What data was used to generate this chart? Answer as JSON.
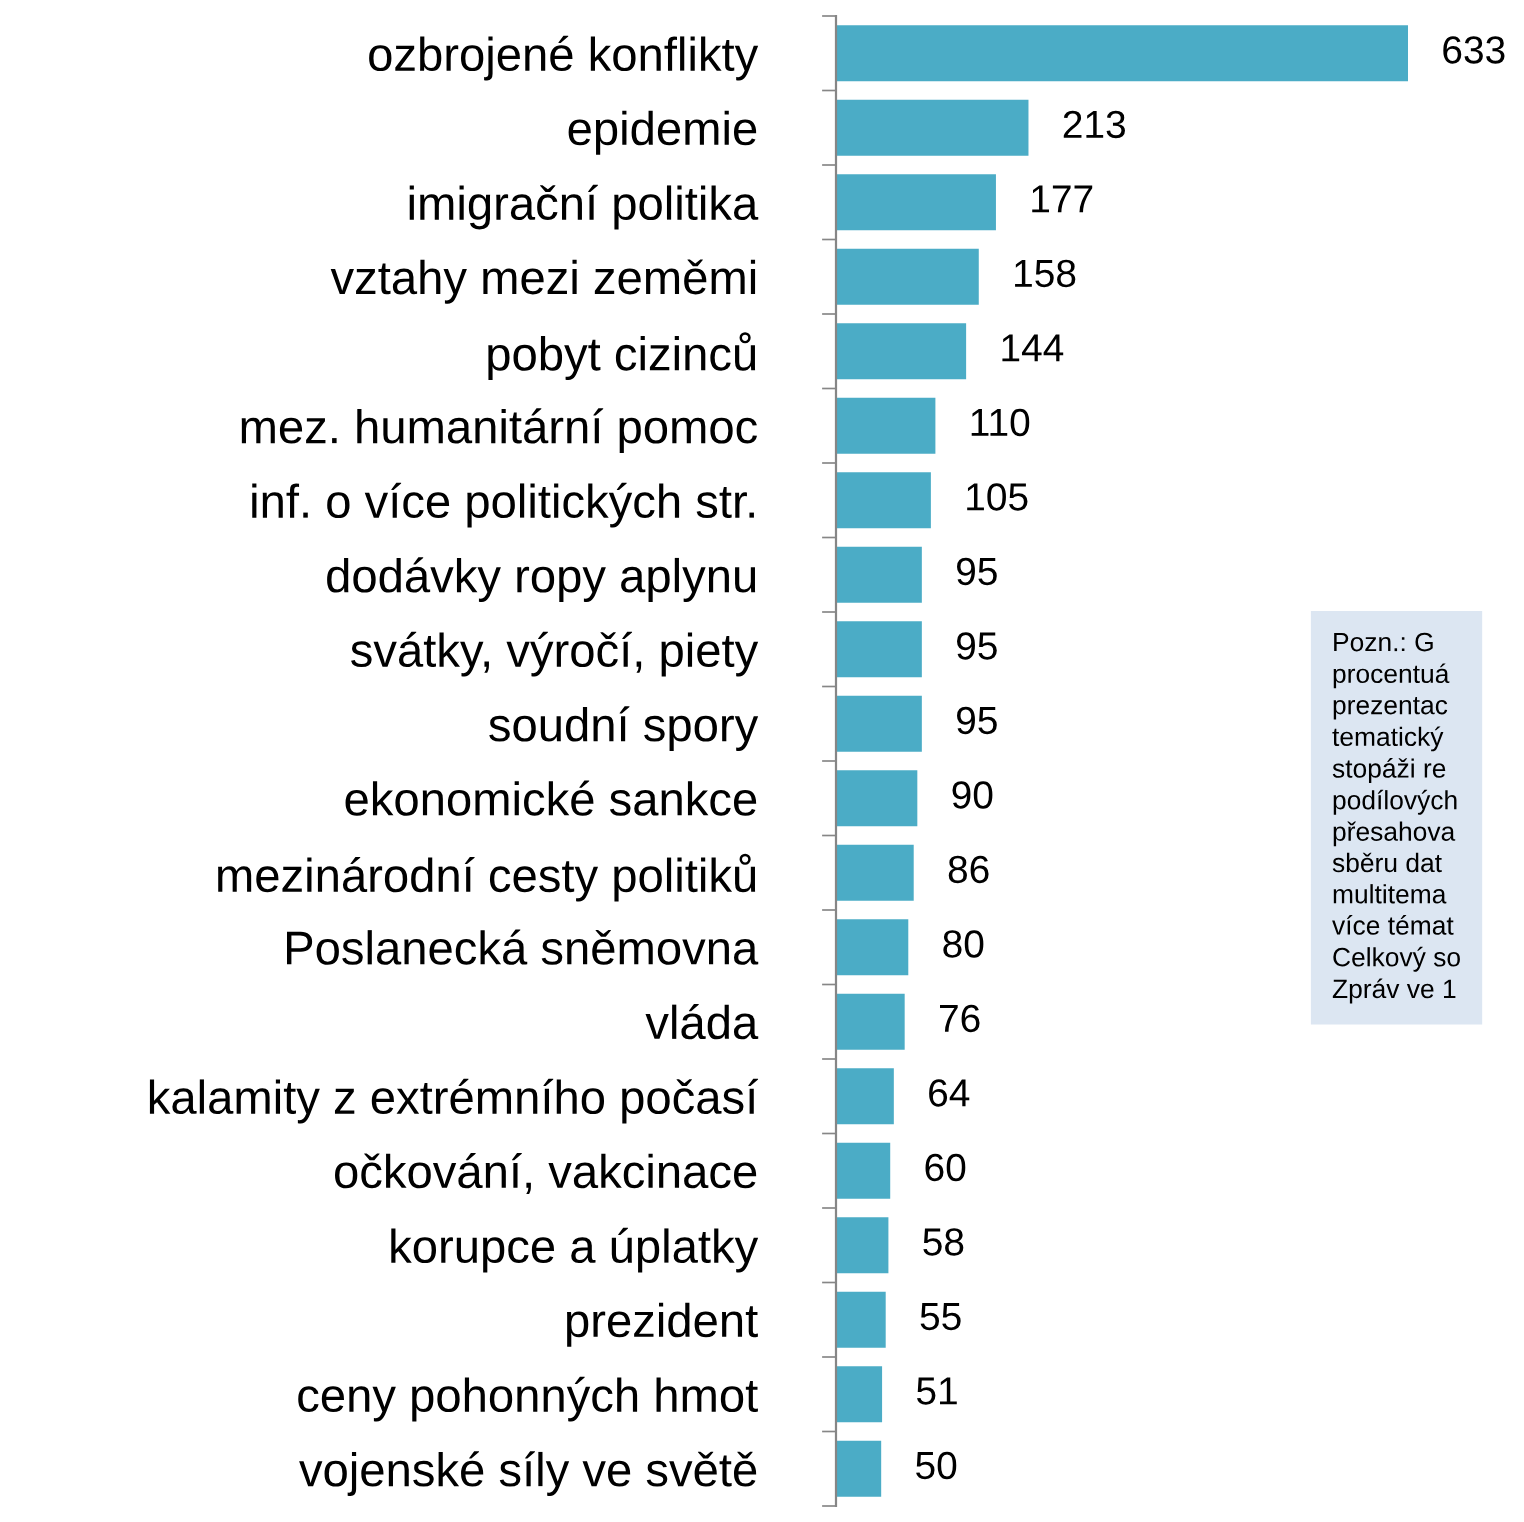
{
  "chart_data": {
    "type": "bar",
    "orientation": "horizontal",
    "categories": [
      "ozbrojené konflikty",
      "epidemie",
      "imigrační politika",
      "vztahy mezi zeměmi",
      "pobyt cizinců",
      "mez. humanitární pomoc",
      "inf. o více politických str.",
      "dodávky ropy aplynu",
      "svátky, výročí, piety",
      "soudní spory",
      "ekonomické sankce",
      "mezinárodní cesty politiků",
      "Poslanecká sněmovna",
      "vláda",
      "kalamity z extrémního počasí",
      "očkování, vakcinace",
      "korupce a úplatky",
      "prezident",
      "ceny pohonných hmot",
      "vojenské síly ve světě"
    ],
    "values": [
      633,
      213,
      177,
      158,
      144,
      110,
      105,
      95,
      95,
      95,
      90,
      86,
      80,
      76,
      64,
      60,
      58,
      55,
      51,
      50
    ],
    "color": "#4bacc6",
    "data_labels": true,
    "grid": false,
    "annotations": [
      "Pozn.: G\nprocentuá\nprezentac\ntematický\nstopáži re\npodílových\npřesahova\nsběru dat\nmultitema\nvíce témat\nCelkový so\nZpráv ve 1"
    ]
  }
}
